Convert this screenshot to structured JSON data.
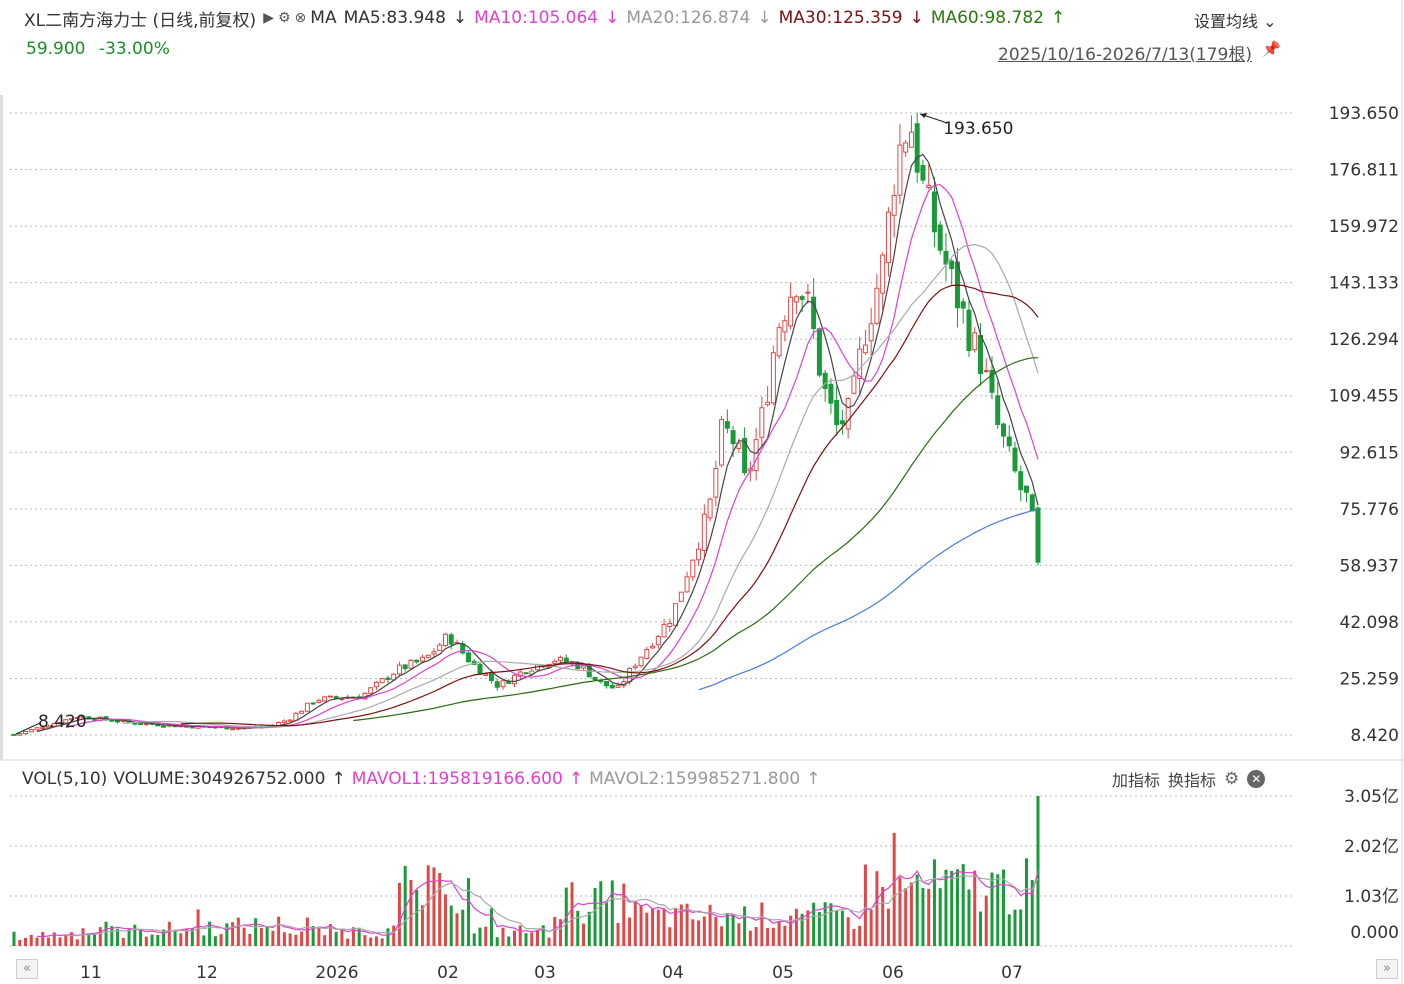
{
  "header": {
    "title": "XL二南方海力士 (日线,前复权)",
    "ma_label": "MA",
    "ma5": "MA5:83.948",
    "ma10": "MA10:105.064",
    "ma20": "MA20:126.874",
    "ma30": "MA30:125.359",
    "ma60": "MA60:98.782",
    "arrow_down": "↓",
    "arrow_up": "↑",
    "last_price": "59.900",
    "change_pct": "-33.00%",
    "settings_label": "设置均线",
    "date_range": "2025/10/16-2026/7/13(179根)"
  },
  "volume_header": {
    "label": "VOL(5,10)",
    "volume": "VOLUME:304926752.000",
    "mavol1": "MAVOL1:195819166.600",
    "mavol2": "MAVOL2:159985271.800",
    "arrow_up": "↑",
    "add_indicator": "加指标",
    "switch_indicator": "换指标"
  },
  "colors": {
    "up": "#e04848",
    "down": "#1a9a3a",
    "ma5": "#444444",
    "ma10": "#e040d0",
    "ma20": "#aaaaaa",
    "ma30": "#7a1010",
    "ma60": "#2a6a10",
    "ma120": "#4a7ad8",
    "grid": "#bbbbbb"
  },
  "chart_data": {
    "type": "candlestick",
    "y_ticks": [
      "193.650",
      "176.811",
      "159.972",
      "143.133",
      "126.294",
      "109.455",
      "92.615",
      "75.776",
      "58.937",
      "42.098",
      "25.259",
      "8.420"
    ],
    "ylim": [
      8.42,
      193.65
    ],
    "x_ticks": [
      "11",
      "12",
      "2026",
      "02",
      "03",
      "04",
      "05",
      "06",
      "07"
    ],
    "max_annotation": "193.650",
    "min_annotation": "8.420",
    "volume_y_ticks": [
      "3.05亿",
      "2.02亿",
      "1.03亿",
      "0.000"
    ],
    "volume_ylim": [
      0,
      305000000
    ],
    "last_volume": 304926752
  }
}
